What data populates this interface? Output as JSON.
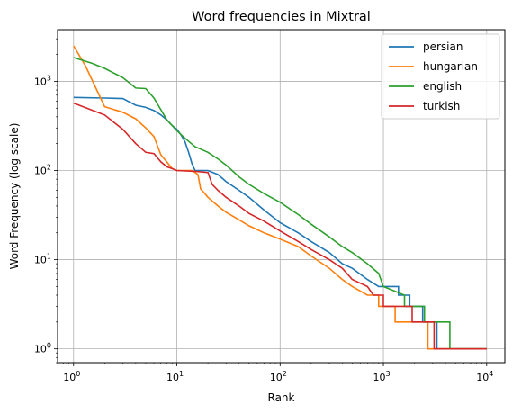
{
  "chart_data": {
    "type": "line",
    "title": "Word frequencies in Mixtral",
    "xlabel": "Rank",
    "ylabel": "Word Frequency (log scale)",
    "x_scale": "log",
    "y_scale": "log",
    "xlim": [
      0.7,
      15000
    ],
    "ylim": [
      0.7,
      3800
    ],
    "x_ticks": [
      {
        "value": 1,
        "base": "10",
        "exp": "0"
      },
      {
        "value": 10,
        "base": "10",
        "exp": "1"
      },
      {
        "value": 100,
        "base": "10",
        "exp": "2"
      },
      {
        "value": 1000,
        "base": "10",
        "exp": "3"
      },
      {
        "value": 10000,
        "base": "10",
        "exp": "4"
      }
    ],
    "y_ticks": [
      {
        "value": 1,
        "base": "10",
        "exp": "0"
      },
      {
        "value": 10,
        "base": "10",
        "exp": "1"
      },
      {
        "value": 100,
        "base": "10",
        "exp": "2"
      },
      {
        "value": 1000,
        "base": "10",
        "exp": "3"
      }
    ],
    "grid": true,
    "legend_position": "top-right",
    "series": [
      {
        "name": "persian",
        "color": "#1f77b4",
        "points": [
          [
            1,
            660
          ],
          [
            2,
            650
          ],
          [
            3,
            640
          ],
          [
            4,
            540
          ],
          [
            5,
            510
          ],
          [
            6,
            470
          ],
          [
            7,
            420
          ],
          [
            8,
            370
          ],
          [
            9,
            320
          ],
          [
            10,
            290
          ],
          [
            11,
            250
          ],
          [
            12,
            210
          ],
          [
            13,
            160
          ],
          [
            14,
            120
          ],
          [
            15,
            100
          ],
          [
            20,
            100
          ],
          [
            25,
            90
          ],
          [
            30,
            75
          ],
          [
            40,
            60
          ],
          [
            50,
            50
          ],
          [
            70,
            36
          ],
          [
            100,
            26
          ],
          [
            150,
            20
          ],
          [
            200,
            16
          ],
          [
            300,
            12
          ],
          [
            400,
            9
          ],
          [
            500,
            8
          ],
          [
            700,
            6
          ],
          [
            900,
            5
          ],
          [
            1400,
            5
          ],
          [
            1400,
            4
          ],
          [
            1800,
            4
          ],
          [
            1800,
            3
          ],
          [
            2400,
            3
          ],
          [
            2400,
            2
          ],
          [
            3300,
            2
          ],
          [
            3300,
            1
          ],
          [
            10000,
            1
          ]
        ]
      },
      {
        "name": "hungarian",
        "color": "#ff7f0e",
        "points": [
          [
            1,
            2500
          ],
          [
            1.3,
            1500
          ],
          [
            1.6,
            900
          ],
          [
            2,
            520
          ],
          [
            3,
            450
          ],
          [
            4,
            380
          ],
          [
            5,
            300
          ],
          [
            6,
            240
          ],
          [
            7,
            150
          ],
          [
            8,
            125
          ],
          [
            9,
            105
          ],
          [
            10,
            100
          ],
          [
            14,
            100
          ],
          [
            15,
            95
          ],
          [
            16,
            90
          ],
          [
            17,
            62
          ],
          [
            18,
            58
          ],
          [
            20,
            50
          ],
          [
            25,
            40
          ],
          [
            30,
            34
          ],
          [
            40,
            28
          ],
          [
            50,
            24
          ],
          [
            70,
            20
          ],
          [
            100,
            17
          ],
          [
            150,
            14
          ],
          [
            200,
            11
          ],
          [
            300,
            8
          ],
          [
            400,
            6
          ],
          [
            500,
            5
          ],
          [
            700,
            4
          ],
          [
            700,
            4
          ],
          [
            900,
            4
          ],
          [
            900,
            3
          ],
          [
            1300,
            3
          ],
          [
            1300,
            2
          ],
          [
            2700,
            2
          ],
          [
            2700,
            1
          ],
          [
            10000,
            1
          ]
        ]
      },
      {
        "name": "english",
        "color": "#2ca02c",
        "points": [
          [
            1,
            1850
          ],
          [
            1.5,
            1600
          ],
          [
            2,
            1400
          ],
          [
            3,
            1100
          ],
          [
            4,
            840
          ],
          [
            5,
            830
          ],
          [
            6,
            650
          ],
          [
            7,
            480
          ],
          [
            8,
            370
          ],
          [
            10,
            280
          ],
          [
            12,
            230
          ],
          [
            15,
            185
          ],
          [
            20,
            160
          ],
          [
            25,
            135
          ],
          [
            30,
            115
          ],
          [
            40,
            85
          ],
          [
            50,
            70
          ],
          [
            70,
            55
          ],
          [
            100,
            44
          ],
          [
            150,
            32
          ],
          [
            200,
            25
          ],
          [
            300,
            18
          ],
          [
            400,
            14
          ],
          [
            500,
            12
          ],
          [
            700,
            9
          ],
          [
            900,
            7
          ],
          [
            1000,
            5
          ],
          [
            1600,
            4
          ],
          [
            1600,
            3
          ],
          [
            2500,
            3
          ],
          [
            2500,
            2
          ],
          [
            4400,
            2
          ],
          [
            4400,
            1
          ],
          [
            10000,
            1
          ]
        ]
      },
      {
        "name": "turkish",
        "color": "#d62728",
        "points": [
          [
            1,
            570
          ],
          [
            2,
            420
          ],
          [
            3,
            290
          ],
          [
            4,
            200
          ],
          [
            5,
            160
          ],
          [
            6,
            155
          ],
          [
            7,
            125
          ],
          [
            8,
            110
          ],
          [
            9,
            105
          ],
          [
            10,
            100
          ],
          [
            15,
            98
          ],
          [
            20,
            95
          ],
          [
            22,
            70
          ],
          [
            25,
            60
          ],
          [
            30,
            50
          ],
          [
            40,
            40
          ],
          [
            50,
            33
          ],
          [
            70,
            27
          ],
          [
            100,
            21
          ],
          [
            150,
            16
          ],
          [
            200,
            13
          ],
          [
            300,
            10
          ],
          [
            400,
            8
          ],
          [
            500,
            6
          ],
          [
            700,
            5
          ],
          [
            800,
            4
          ],
          [
            1000,
            4
          ],
          [
            1000,
            3
          ],
          [
            1900,
            3
          ],
          [
            1900,
            2
          ],
          [
            3100,
            2
          ],
          [
            3100,
            1
          ],
          [
            10000,
            1
          ]
        ]
      }
    ]
  }
}
